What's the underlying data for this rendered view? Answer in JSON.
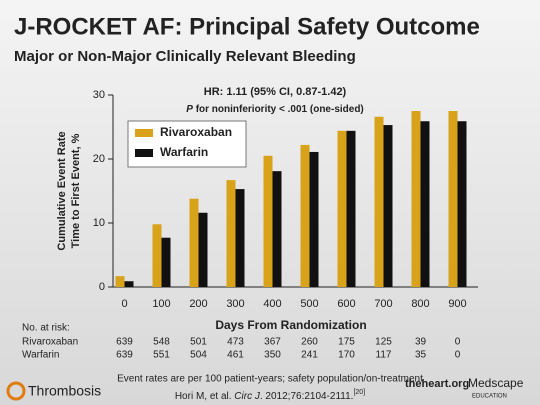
{
  "chart_data": {
    "type": "bar",
    "title": "J-ROCKET AF: Principal Safety Outcome",
    "subtitle": "Major or Non-Major Clinically Relevant Bleeding",
    "annotations": [
      "HR: 1.11 (95% CI, 0.87-1.42)",
      "P",
      "for noninferiority < .001 (one-sided)"
    ],
    "y_label": [
      "Cumulative Event Rate",
      "Time to First Event, %"
    ],
    "x_label": "Days From Randomization",
    "categories": [
      0,
      100,
      200,
      300,
      400,
      500,
      600,
      700,
      800,
      900
    ],
    "series": [
      {
        "name": "Rivaroxaban",
        "color": "#d9a21b",
        "values": [
          1.7,
          9.8,
          13.8,
          16.7,
          20.5,
          22.2,
          24.4,
          26.6,
          27.5,
          27.5
        ]
      },
      {
        "name": "Warfarin",
        "color": "#111111",
        "values": [
          0.9,
          7.7,
          11.6,
          15.3,
          18.1,
          21.1,
          24.4,
          25.3,
          25.9,
          25.9
        ]
      }
    ],
    "ylim": [
      0,
      30
    ],
    "yticks": [
      0,
      10,
      20,
      30
    ],
    "grid": false,
    "legend": "upper left"
  },
  "risk_table": {
    "title": "No. at risk:",
    "rows": [
      {
        "name": "Rivaroxaban",
        "values": [
          639,
          548,
          501,
          473,
          367,
          260,
          175,
          125,
          39,
          0
        ]
      },
      {
        "name": "Warfarin",
        "values": [
          639,
          551,
          504,
          461,
          350,
          241,
          170,
          117,
          35,
          0
        ]
      }
    ]
  },
  "footer": {
    "note": "Event rates are per 100 patient-years; safety population/on-treatment",
    "citation": [
      "Hori M, et al.",
      "Circ J",
      ". 2012;76:2104-2111.",
      "[20]"
    ]
  },
  "logos": {
    "left": "Thrombosis",
    "middle": "theheart.org",
    "right": [
      "Medscape",
      "EDUCATION"
    ]
  }
}
